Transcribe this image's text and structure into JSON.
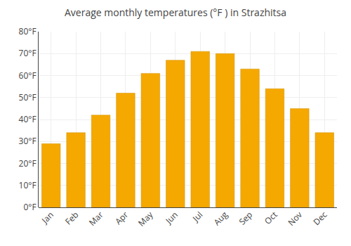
{
  "chart_data": {
    "type": "bar",
    "title": "Average monthly temperatures (°F ) in Strazhitsa",
    "categories": [
      "Jan",
      "Feb",
      "Mar",
      "Apr",
      "May",
      "Jun",
      "Jul",
      "Aug",
      "Sep",
      "Oct",
      "Nov",
      "Dec"
    ],
    "values": [
      29,
      34,
      42,
      52,
      61,
      67,
      71,
      70,
      63,
      54,
      45,
      34
    ],
    "color": "#F5A800",
    "ylim": [
      0,
      80
    ],
    "yticks": [
      {
        "value": 0,
        "label": "0°F"
      },
      {
        "value": 10,
        "label": "10°F"
      },
      {
        "value": 20,
        "label": "20°F"
      },
      {
        "value": 30,
        "label": "30°F"
      },
      {
        "value": 40,
        "label": "40°F"
      },
      {
        "value": 50,
        "label": "50°F"
      },
      {
        "value": 60,
        "label": "60°F"
      },
      {
        "value": 70,
        "label": "70°F"
      },
      {
        "value": 80,
        "label": "80°F"
      }
    ],
    "grid": true
  }
}
